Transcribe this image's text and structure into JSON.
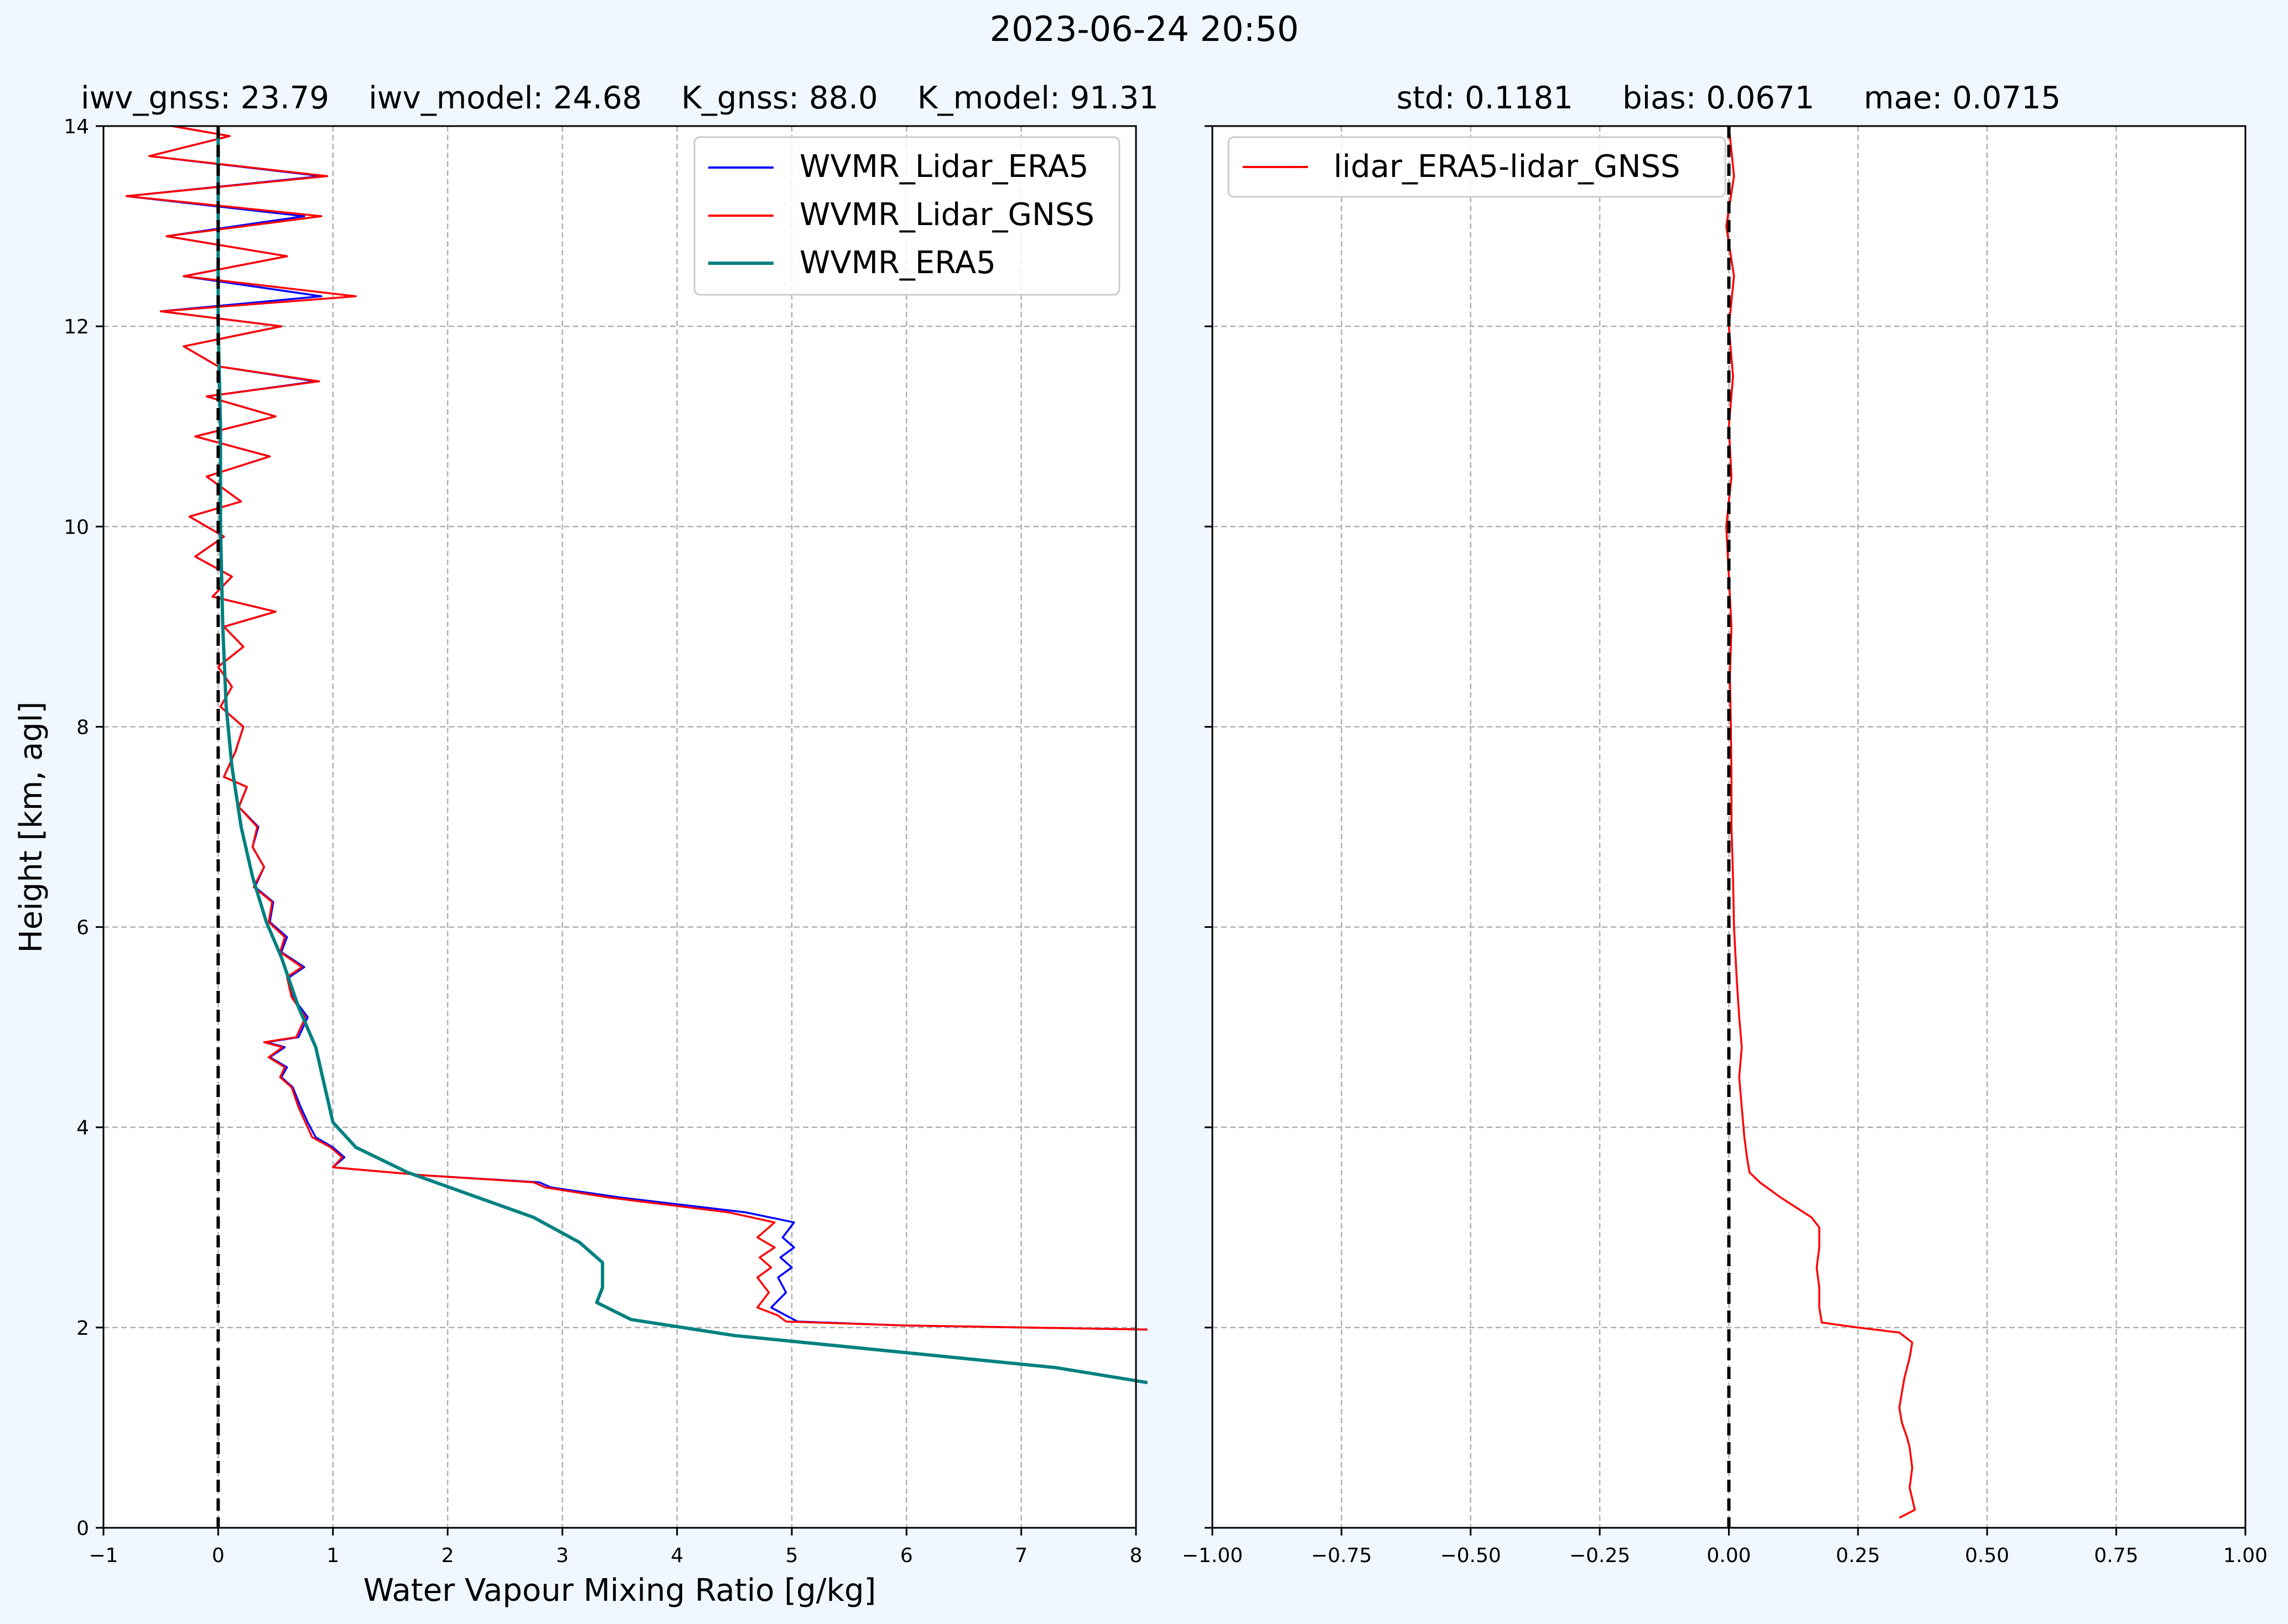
{
  "figure": {
    "title": "2023-06-24 20:50",
    "background": "#f0f7ff"
  },
  "chart_data": [
    {
      "type": "line",
      "title": "iwv_gnss: 23.79    iwv_model: 24.68    K_gnss: 88.0    K_model: 91.31",
      "xlabel": "Water Vapour Mixing Ratio [g/kg]",
      "ylabel": "Height [km, agl]",
      "xlim": [
        -1,
        8
      ],
      "ylim": [
        0,
        14
      ],
      "xticks": [
        -1,
        0,
        1,
        2,
        3,
        4,
        5,
        6,
        7,
        8
      ],
      "xtick_labels": [
        "−1",
        "0",
        "1",
        "2",
        "3",
        "4",
        "5",
        "6",
        "7",
        "8"
      ],
      "yticks": [
        0,
        2,
        4,
        6,
        8,
        10,
        12,
        14
      ],
      "ytick_labels": [
        "0",
        "2",
        "4",
        "6",
        "8",
        "10",
        "12",
        "14"
      ],
      "grid": true,
      "legend_position": "top-right",
      "reference_line": {
        "x": 0,
        "style": "dashed",
        "color": "#000000"
      },
      "series": [
        {
          "name": "WVMR_Lidar_ERA5",
          "color": "#0000ff",
          "points": [
            [
              8.1,
              1.98
            ],
            [
              6.0,
              2.02
            ],
            [
              5.05,
              2.06
            ],
            [
              4.95,
              2.12
            ],
            [
              4.82,
              2.2
            ],
            [
              4.95,
              2.35
            ],
            [
              4.88,
              2.5
            ],
            [
              5.0,
              2.6
            ],
            [
              4.9,
              2.7
            ],
            [
              5.02,
              2.8
            ],
            [
              4.92,
              2.9
            ],
            [
              5.02,
              3.05
            ],
            [
              4.6,
              3.15
            ],
            [
              3.5,
              3.3
            ],
            [
              2.9,
              3.4
            ],
            [
              2.8,
              3.45
            ],
            [
              1.8,
              3.52
            ],
            [
              1.2,
              3.58
            ],
            [
              1.0,
              3.6
            ],
            [
              1.1,
              3.7
            ],
            [
              1.0,
              3.8
            ],
            [
              0.85,
              3.9
            ],
            [
              0.78,
              4.05
            ],
            [
              0.72,
              4.2
            ],
            [
              0.65,
              4.4
            ],
            [
              0.55,
              4.5
            ],
            [
              0.6,
              4.6
            ],
            [
              0.45,
              4.7
            ],
            [
              0.58,
              4.8
            ],
            [
              0.42,
              4.85
            ],
            [
              0.7,
              4.9
            ],
            [
              0.78,
              5.1
            ],
            [
              0.65,
              5.3
            ],
            [
              0.62,
              5.5
            ],
            [
              0.75,
              5.6
            ],
            [
              0.55,
              5.75
            ],
            [
              0.6,
              5.9
            ],
            [
              0.45,
              6.05
            ],
            [
              0.48,
              6.25
            ],
            [
              0.32,
              6.4
            ],
            [
              0.4,
              6.6
            ],
            [
              0.3,
              6.8
            ],
            [
              0.35,
              7.0
            ],
            [
              0.18,
              7.2
            ],
            [
              0.25,
              7.4
            ],
            [
              0.05,
              7.5
            ],
            [
              0.15,
              7.75
            ],
            [
              0.22,
              8.0
            ],
            [
              0.02,
              8.2
            ],
            [
              0.12,
              8.4
            ],
            [
              0.0,
              8.6
            ],
            [
              0.22,
              8.8
            ],
            [
              0.05,
              9.0
            ],
            [
              0.5,
              9.15
            ],
            [
              -0.05,
              9.3
            ],
            [
              0.12,
              9.5
            ],
            [
              -0.2,
              9.7
            ],
            [
              0.05,
              9.9
            ],
            [
              -0.25,
              10.1
            ],
            [
              0.2,
              10.25
            ],
            [
              -0.1,
              10.5
            ],
            [
              0.45,
              10.7
            ],
            [
              -0.2,
              10.9
            ],
            [
              0.5,
              11.1
            ],
            [
              -0.1,
              11.3
            ],
            [
              0.85,
              11.45
            ],
            [
              0.0,
              11.6
            ],
            [
              -0.3,
              11.8
            ],
            [
              0.55,
              12.0
            ],
            [
              -0.5,
              12.15
            ],
            [
              0.9,
              12.3
            ],
            [
              -0.3,
              12.5
            ],
            [
              0.6,
              12.7
            ],
            [
              -0.45,
              12.9
            ],
            [
              0.75,
              13.1
            ],
            [
              -0.8,
              13.3
            ],
            [
              0.9,
              13.5
            ],
            [
              -0.6,
              13.7
            ],
            [
              0.1,
              13.9
            ],
            [
              -0.4,
              14.0
            ]
          ]
        },
        {
          "name": "WVMR_Lidar_GNSS",
          "color": "#ff0000",
          "points": [
            [
              8.1,
              1.98
            ],
            [
              6.0,
              2.02
            ],
            [
              4.95,
              2.06
            ],
            [
              4.88,
              2.12
            ],
            [
              4.7,
              2.2
            ],
            [
              4.8,
              2.35
            ],
            [
              4.7,
              2.5
            ],
            [
              4.82,
              2.6
            ],
            [
              4.72,
              2.7
            ],
            [
              4.85,
              2.8
            ],
            [
              4.7,
              2.9
            ],
            [
              4.85,
              3.05
            ],
            [
              4.45,
              3.15
            ],
            [
              3.4,
              3.3
            ],
            [
              2.85,
              3.4
            ],
            [
              2.75,
              3.45
            ],
            [
              1.8,
              3.52
            ],
            [
              1.2,
              3.58
            ],
            [
              1.0,
              3.6
            ],
            [
              1.08,
              3.7
            ],
            [
              0.98,
              3.8
            ],
            [
              0.82,
              3.9
            ],
            [
              0.76,
              4.05
            ],
            [
              0.7,
              4.2
            ],
            [
              0.64,
              4.4
            ],
            [
              0.54,
              4.5
            ],
            [
              0.58,
              4.6
            ],
            [
              0.44,
              4.7
            ],
            [
              0.56,
              4.8
            ],
            [
              0.4,
              4.85
            ],
            [
              0.68,
              4.9
            ],
            [
              0.76,
              5.1
            ],
            [
              0.64,
              5.3
            ],
            [
              0.6,
              5.5
            ],
            [
              0.73,
              5.6
            ],
            [
              0.54,
              5.75
            ],
            [
              0.58,
              5.9
            ],
            [
              0.44,
              6.05
            ],
            [
              0.47,
              6.25
            ],
            [
              0.31,
              6.4
            ],
            [
              0.4,
              6.6
            ],
            [
              0.3,
              6.8
            ],
            [
              0.34,
              7.0
            ],
            [
              0.18,
              7.2
            ],
            [
              0.25,
              7.4
            ],
            [
              0.05,
              7.5
            ],
            [
              0.15,
              7.75
            ],
            [
              0.22,
              8.0
            ],
            [
              0.02,
              8.2
            ],
            [
              0.12,
              8.4
            ],
            [
              0.0,
              8.6
            ],
            [
              0.22,
              8.8
            ],
            [
              0.05,
              9.0
            ],
            [
              0.5,
              9.15
            ],
            [
              -0.05,
              9.3
            ],
            [
              0.12,
              9.5
            ],
            [
              -0.2,
              9.7
            ],
            [
              0.05,
              9.9
            ],
            [
              -0.25,
              10.1
            ],
            [
              0.2,
              10.25
            ],
            [
              -0.1,
              10.5
            ],
            [
              0.45,
              10.7
            ],
            [
              -0.2,
              10.9
            ],
            [
              0.5,
              11.1
            ],
            [
              -0.1,
              11.3
            ],
            [
              0.88,
              11.45
            ],
            [
              0.0,
              11.6
            ],
            [
              -0.3,
              11.8
            ],
            [
              0.55,
              12.0
            ],
            [
              -0.5,
              12.15
            ],
            [
              1.2,
              12.3
            ],
            [
              -0.3,
              12.5
            ],
            [
              0.6,
              12.7
            ],
            [
              -0.45,
              12.9
            ],
            [
              0.9,
              13.1
            ],
            [
              -0.8,
              13.3
            ],
            [
              0.95,
              13.5
            ],
            [
              -0.6,
              13.7
            ],
            [
              0.1,
              13.9
            ],
            [
              -0.4,
              14.0
            ]
          ]
        },
        {
          "name": "WVMR_ERA5",
          "color": "#008080",
          "points": [
            [
              8.1,
              1.45
            ],
            [
              7.3,
              1.6
            ],
            [
              4.5,
              1.92
            ],
            [
              3.6,
              2.08
            ],
            [
              3.3,
              2.25
            ],
            [
              3.35,
              2.4
            ],
            [
              3.35,
              2.65
            ],
            [
              3.15,
              2.85
            ],
            [
              2.75,
              3.1
            ],
            [
              1.65,
              3.55
            ],
            [
              1.2,
              3.8
            ],
            [
              1.0,
              4.05
            ],
            [
              0.95,
              4.3
            ],
            [
              0.85,
              4.8
            ],
            [
              0.7,
              5.2
            ],
            [
              0.55,
              5.7
            ],
            [
              0.42,
              6.05
            ],
            [
              0.3,
              6.5
            ],
            [
              0.2,
              7.0
            ],
            [
              0.12,
              7.6
            ],
            [
              0.07,
              8.2
            ],
            [
              0.04,
              9.0
            ],
            [
              0.02,
              10.0
            ],
            [
              0.02,
              11.0
            ],
            [
              0.0,
              12.0
            ],
            [
              0.0,
              13.0
            ],
            [
              0.0,
              14.0
            ]
          ]
        }
      ]
    },
    {
      "type": "line",
      "title": "std: 0.1181     bias: 0.0671     mae: 0.0715",
      "xlabel": "",
      "ylabel": "",
      "xlim": [
        -1.0,
        1.0
      ],
      "ylim": [
        0,
        14
      ],
      "xticks": [
        -1.0,
        -0.75,
        -0.5,
        -0.25,
        0.0,
        0.25,
        0.5,
        0.75,
        1.0
      ],
      "xtick_labels": [
        "−1.00",
        "−0.75",
        "−0.50",
        "−0.25",
        "0.00",
        "0.25",
        "0.50",
        "0.75",
        "1.00"
      ],
      "yticks": [
        0,
        2,
        4,
        6,
        8,
        10,
        12,
        14
      ],
      "ytick_labels": [],
      "grid": true,
      "legend_position": "top-left",
      "reference_line": {
        "x": 0,
        "style": "dashed",
        "color": "#000000"
      },
      "series": [
        {
          "name": "lidar_ERA5-lidar_GNSS",
          "color": "#ff0000",
          "points": [
            [
              0.33,
              0.1
            ],
            [
              0.36,
              0.18
            ],
            [
              0.35,
              0.4
            ],
            [
              0.355,
              0.6
            ],
            [
              0.35,
              0.8
            ],
            [
              0.345,
              0.9
            ],
            [
              0.335,
              1.05
            ],
            [
              0.33,
              1.2
            ],
            [
              0.335,
              1.35
            ],
            [
              0.34,
              1.5
            ],
            [
              0.345,
              1.6
            ],
            [
              0.35,
              1.7
            ],
            [
              0.355,
              1.85
            ],
            [
              0.33,
              1.95
            ],
            [
              0.25,
              2.0
            ],
            [
              0.18,
              2.05
            ],
            [
              0.175,
              2.2
            ],
            [
              0.175,
              2.4
            ],
            [
              0.17,
              2.6
            ],
            [
              0.175,
              2.8
            ],
            [
              0.175,
              3.0
            ],
            [
              0.16,
              3.1
            ],
            [
              0.1,
              3.3
            ],
            [
              0.06,
              3.45
            ],
            [
              0.04,
              3.55
            ],
            [
              0.035,
              3.7
            ],
            [
              0.03,
              3.9
            ],
            [
              0.025,
              4.2
            ],
            [
              0.02,
              4.5
            ],
            [
              0.025,
              4.8
            ],
            [
              0.02,
              5.1
            ],
            [
              0.015,
              5.5
            ],
            [
              0.01,
              6.0
            ],
            [
              0.008,
              6.5
            ],
            [
              0.005,
              7.0
            ],
            [
              0.005,
              7.5
            ],
            [
              0.004,
              8.0
            ],
            [
              0.002,
              8.5
            ],
            [
              0.005,
              9.0
            ],
            [
              0.0,
              9.5
            ],
            [
              -0.005,
              10.0
            ],
            [
              0.005,
              10.5
            ],
            [
              0.0,
              11.0
            ],
            [
              0.008,
              11.5
            ],
            [
              0.0,
              12.0
            ],
            [
              0.01,
              12.5
            ],
            [
              -0.005,
              13.0
            ],
            [
              0.01,
              13.5
            ],
            [
              0.0,
              14.0
            ]
          ]
        }
      ]
    }
  ]
}
